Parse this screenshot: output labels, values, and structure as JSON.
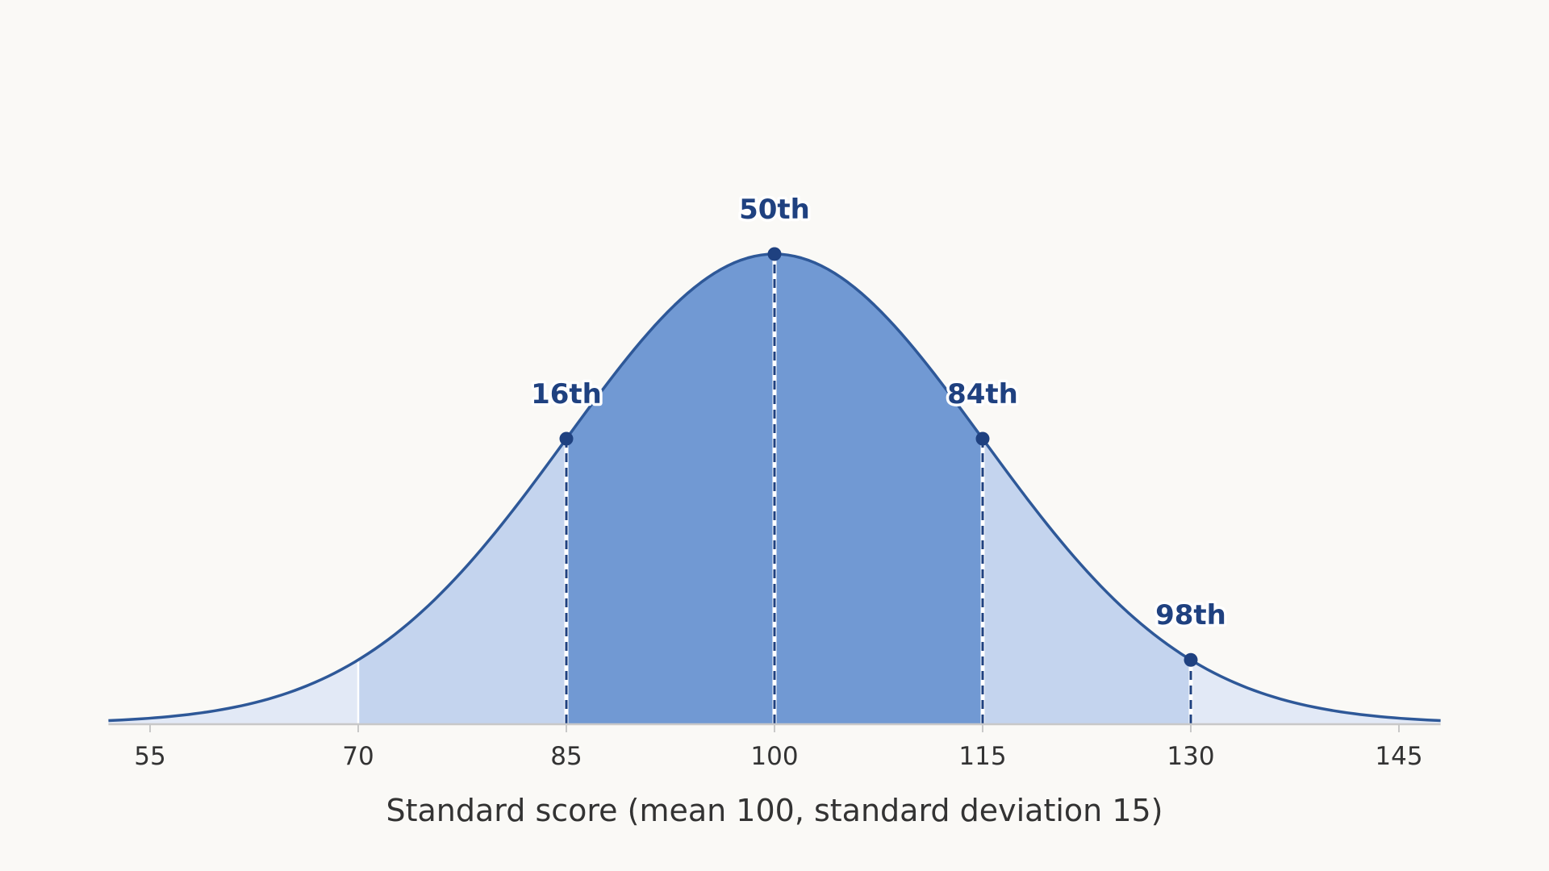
{
  "chart_data": {
    "type": "area",
    "distribution": "normal",
    "mean": 100,
    "sd": 15,
    "xlim": [
      52,
      148
    ],
    "xlabel": "Standard score  (mean 100, standard deviation 15)",
    "ylabel": "",
    "title": "",
    "grid": false,
    "x_ticks": [
      55,
      70,
      85,
      100,
      115,
      130,
      145
    ],
    "x_tick_labels": [
      "55",
      "70",
      "85",
      "100",
      "115",
      "130",
      "145"
    ],
    "bands": [
      {
        "from": 52,
        "to": 70,
        "color": "#e2e9f6"
      },
      {
        "from": 70,
        "to": 85,
        "color": "#c4d4ee"
      },
      {
        "from": 85,
        "to": 115,
        "color": "#7199d3"
      },
      {
        "from": 115,
        "to": 130,
        "color": "#c4d4ee"
      },
      {
        "from": 130,
        "to": 148,
        "color": "#e2e9f6"
      }
    ],
    "percentile_markers": [
      {
        "x": 85,
        "label": "16th"
      },
      {
        "x": 100,
        "label": "50th"
      },
      {
        "x": 115,
        "label": "84th"
      },
      {
        "x": 130,
        "label": "98th"
      }
    ],
    "band_boundary_lines": [
      70
    ],
    "colors": {
      "curve": "#2e5898",
      "marker": "#1f4180",
      "axis": "#c8c8c8",
      "background": "#faf9f6"
    }
  }
}
